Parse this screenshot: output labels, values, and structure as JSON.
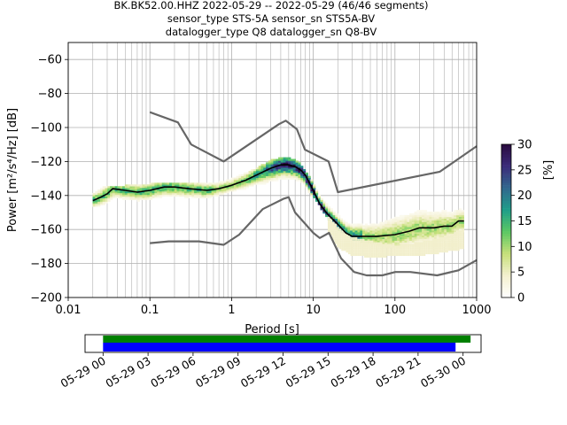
{
  "chart_data": {
    "type": "heatmap",
    "title": [
      "BK.BK52.00.HHZ   2022-05-29 -- 2022-05-29  (46/46 segments)",
      "sensor_type STS-5A sensor_sn STS5A-BV",
      "datalogger_type Q8 datalogger_sn Q8-BV"
    ],
    "xlabel": "Period [s]",
    "ylabel": "Power [m²/s⁴/Hz] [dB]",
    "xscale": "log",
    "xlim": [
      0.01,
      1000
    ],
    "ylim": [
      -200,
      -50
    ],
    "x_ticks": [
      "0.01",
      "0.1",
      "1",
      "10",
      "100",
      "1000"
    ],
    "y_ticks": [
      "−60",
      "−80",
      "−100",
      "−120",
      "−140",
      "−160",
      "−180",
      "−200"
    ],
    "y_tick_values": [
      -60,
      -80,
      -100,
      -120,
      -140,
      -160,
      -180,
      -200
    ],
    "grid": true,
    "colorbar": {
      "label": "[%]",
      "range": [
        0,
        30
      ],
      "ticks": [
        "0",
        "5",
        "10",
        "15",
        "20",
        "25",
        "30"
      ],
      "tick_values": [
        0,
        5,
        10,
        15,
        20,
        25,
        30
      ]
    },
    "nhnm": {
      "period": [
        0.1,
        0.22,
        0.32,
        0.8,
        3.8,
        4.6,
        6.3,
        7.9,
        15.4,
        20,
        354.8,
        1000
      ],
      "power": [
        -91,
        -97,
        -110,
        -120,
        -98,
        -96,
        -101,
        -113,
        -120,
        -138,
        -126,
        -111
      ]
    },
    "nlnm": {
      "period": [
        0.1,
        0.17,
        0.4,
        0.8,
        1.24,
        2.4,
        4.3,
        5,
        6,
        10,
        12,
        15.6,
        21.9,
        31.6,
        45,
        70,
        101,
        154,
        328,
        600,
        1000
      ],
      "power": [
        -168,
        -167,
        -167,
        -169,
        -163,
        -148,
        -142,
        -141,
        -150,
        -162,
        -165,
        -162,
        -177,
        -185,
        -187,
        -187,
        -185,
        -185,
        -187,
        -184,
        -178
      ]
    },
    "mode": {
      "period": [
        0.02,
        0.025,
        0.03,
        0.035,
        0.05,
        0.07,
        0.1,
        0.15,
        0.2,
        0.3,
        0.5,
        0.7,
        1,
        1.5,
        2,
        3,
        4,
        5,
        6,
        7,
        8,
        10,
        12,
        15,
        20,
        25,
        30,
        40,
        60,
        100,
        150,
        200,
        300,
        400,
        500,
        600,
        700
      ],
      "power": [
        -143,
        -141,
        -139,
        -136,
        -137,
        -138,
        -137,
        -135,
        -135,
        -136,
        -137,
        -136,
        -134,
        -131,
        -128,
        -124,
        -122,
        -122,
        -123,
        -125,
        -128,
        -137,
        -145,
        -151,
        -157,
        -162,
        -164,
        -164,
        -164,
        -163,
        -161,
        -159,
        -159,
        -158,
        -158,
        -155,
        -155
      ]
    },
    "data_bands": [
      {
        "period": [
          0.02,
          0.03,
          0.05,
          0.1,
          0.2,
          0.5,
          1,
          2,
          3,
          5,
          7,
          10,
          15,
          20,
          30,
          60,
          100,
          200,
          400,
          700
        ],
        "upper": [
          -139,
          -135,
          -135,
          -134,
          -133,
          -134,
          -131,
          -125,
          -120,
          -118,
          -122,
          -133,
          -145,
          -151,
          -154,
          -154,
          -150,
          -148,
          -148,
          -148
        ],
        "lower": [
          -146,
          -144,
          -143,
          -143,
          -142,
          -141,
          -137,
          -134,
          -133,
          -131,
          -132,
          -140,
          -152,
          -159,
          -165,
          -168,
          -170,
          -168,
          -165,
          -160
        ]
      }
    ],
    "low_tail": {
      "period": [
        15,
        20,
        30,
        60,
        100,
        200,
        400,
        700
      ],
      "power": [
        -160,
        -170,
        -175,
        -176,
        -175,
        -175,
        -173,
        -171
      ]
    },
    "timeline": {
      "ticks": [
        "05-29 00",
        "05-29 03",
        "05-29 06",
        "05-29 09",
        "05-29 12",
        "05-29 15",
        "05-29 18",
        "05-29 21",
        "05-30 00"
      ],
      "tick_hours": [
        0,
        3,
        6,
        9,
        12,
        15,
        18,
        21,
        24
      ],
      "range_hours": [
        -1.2,
        25.2
      ],
      "bars": [
        {
          "color": "#008000",
          "start_h": 0,
          "end_h": 24.5
        },
        {
          "color": "#0000ff",
          "start_h": 0,
          "end_h": 23.5
        }
      ]
    },
    "colors": {
      "model": "#666666",
      "mode": "#000000",
      "colormap": [
        "#ffffff",
        "#f4f0d0",
        "#c7e07a",
        "#5cc863",
        "#1f9e89",
        "#31688e",
        "#3b2c7a",
        "#2a0a3f"
      ]
    }
  }
}
